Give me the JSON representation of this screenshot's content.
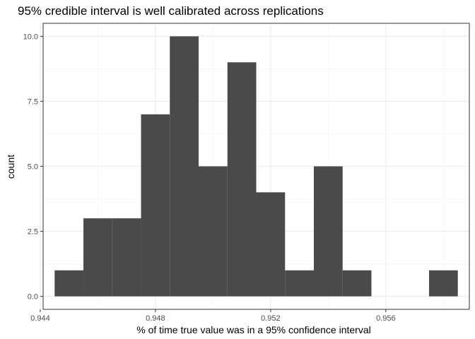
{
  "chart_data": {
    "type": "bar",
    "title": "95% credible interval is well calibrated across replications",
    "xlabel": "% of time true value was in a 95% confidence interval",
    "ylabel": "count",
    "xlim": [
      0.9441,
      0.9589
    ],
    "ylim": [
      -0.5,
      10.5
    ],
    "x_ticks": [
      0.944,
      0.948,
      0.952,
      0.956
    ],
    "x_tick_labels": [
      "0.944",
      "0.948",
      "0.952",
      "0.956"
    ],
    "y_ticks": [
      0.0,
      2.5,
      5.0,
      7.5,
      10.0
    ],
    "y_tick_labels": [
      "0.0",
      "2.5",
      "5.0",
      "7.5",
      "10.0"
    ],
    "grid": true,
    "bar_color": "#4a4a4a",
    "bins": [
      {
        "x0": 0.9445,
        "x1": 0.9455,
        "count": 1
      },
      {
        "x0": 0.9455,
        "x1": 0.9465,
        "count": 3
      },
      {
        "x0": 0.9465,
        "x1": 0.9475,
        "count": 3
      },
      {
        "x0": 0.9475,
        "x1": 0.9485,
        "count": 7
      },
      {
        "x0": 0.9485,
        "x1": 0.9495,
        "count": 10
      },
      {
        "x0": 0.9495,
        "x1": 0.9505,
        "count": 5
      },
      {
        "x0": 0.9505,
        "x1": 0.9515,
        "count": 9
      },
      {
        "x0": 0.9515,
        "x1": 0.9525,
        "count": 4
      },
      {
        "x0": 0.9525,
        "x1": 0.9535,
        "count": 1
      },
      {
        "x0": 0.9535,
        "x1": 0.9545,
        "count": 5
      },
      {
        "x0": 0.9545,
        "x1": 0.9555,
        "count": 1
      },
      {
        "x0": 0.9555,
        "x1": 0.9565,
        "count": 0
      },
      {
        "x0": 0.9565,
        "x1": 0.9575,
        "count": 0
      },
      {
        "x0": 0.9575,
        "x1": 0.9585,
        "count": 1
      }
    ]
  }
}
